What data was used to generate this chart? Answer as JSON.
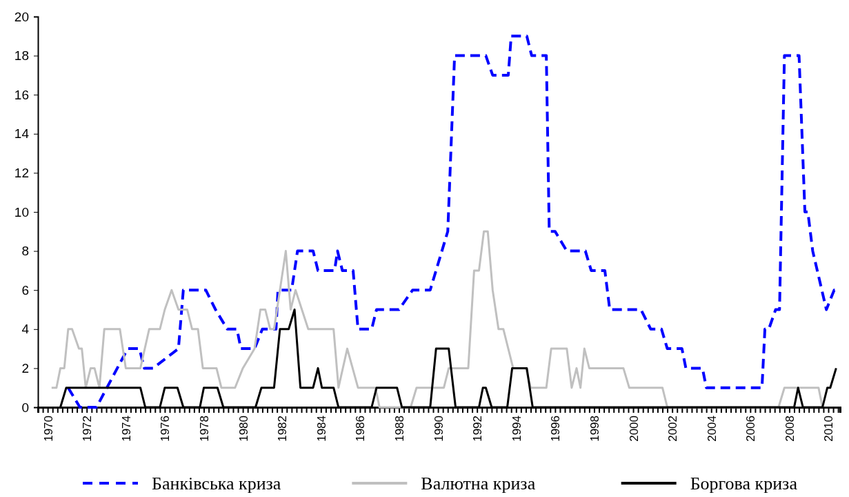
{
  "chart_data": {
    "type": "line",
    "xlim": [
      1969.5,
      2010.6
    ],
    "ylim": [
      0,
      20
    ],
    "yticks": [
      0,
      2,
      4,
      6,
      8,
      10,
      12,
      14,
      16,
      18,
      20
    ],
    "xticks": [
      {
        "value": 1969.5,
        "label": null
      },
      {
        "value": 1969.75,
        "label": null
      },
      1970,
      {
        "value": 1970.25,
        "label": null
      },
      {
        "value": 1970.5,
        "label": null
      },
      {
        "value": 1970.75,
        "label": null
      },
      {
        "value": 1971,
        "label": null
      },
      {
        "value": 1971.25,
        "label": null
      },
      {
        "value": 1971.5,
        "label": null
      },
      {
        "value": 1971.75,
        "label": null
      },
      1972,
      {
        "value": 1972.25,
        "label": null
      },
      {
        "value": 1972.5,
        "label": null
      },
      {
        "value": 1972.75,
        "label": null
      },
      {
        "value": 1973,
        "label": null
      },
      {
        "value": 1973.25,
        "label": null
      },
      {
        "value": 1973.5,
        "label": null
      },
      {
        "value": 1973.75,
        "label": null
      },
      1974,
      {
        "value": 1974.25,
        "label": null
      },
      {
        "value": 1974.5,
        "label": null
      },
      {
        "value": 1974.75,
        "label": null
      },
      {
        "value": 1975,
        "label": null
      },
      {
        "value": 1975.25,
        "label": null
      },
      {
        "value": 1975.5,
        "label": null
      },
      {
        "value": 1975.75,
        "label": null
      },
      1976,
      {
        "value": 1976.25,
        "label": null
      },
      {
        "value": 1976.5,
        "label": null
      },
      {
        "value": 1976.75,
        "label": null
      },
      {
        "value": 1977,
        "label": null
      },
      {
        "value": 1977.25,
        "label": null
      },
      {
        "value": 1977.5,
        "label": null
      },
      {
        "value": 1977.75,
        "label": null
      },
      1978,
      {
        "value": 1978.25,
        "label": null
      },
      {
        "value": 1978.5,
        "label": null
      },
      {
        "value": 1978.75,
        "label": null
      },
      {
        "value": 1979,
        "label": null
      },
      {
        "value": 1979.25,
        "label": null
      },
      {
        "value": 1979.5,
        "label": null
      },
      {
        "value": 1979.75,
        "label": null
      },
      1980,
      {
        "value": 1980.25,
        "label": null
      },
      {
        "value": 1980.5,
        "label": null
      },
      {
        "value": 1980.75,
        "label": null
      },
      {
        "value": 1981,
        "label": null
      },
      {
        "value": 1981.25,
        "label": null
      },
      {
        "value": 1981.5,
        "label": null
      },
      {
        "value": 1981.75,
        "label": null
      },
      1982,
      {
        "value": 1982.25,
        "label": null
      },
      {
        "value": 1982.5,
        "label": null
      },
      {
        "value": 1982.75,
        "label": null
      },
      {
        "value": 1983,
        "label": null
      },
      {
        "value": 1983.25,
        "label": null
      },
      {
        "value": 1983.5,
        "label": null
      },
      {
        "value": 1983.75,
        "label": null
      },
      1984,
      {
        "value": 1984.25,
        "label": null
      },
      {
        "value": 1984.5,
        "label": null
      },
      {
        "value": 1984.75,
        "label": null
      },
      {
        "value": 1985,
        "label": null
      },
      {
        "value": 1985.25,
        "label": null
      },
      {
        "value": 1985.5,
        "label": null
      },
      {
        "value": 1985.75,
        "label": null
      },
      1986,
      {
        "value": 1986.25,
        "label": null
      },
      {
        "value": 1986.5,
        "label": null
      },
      {
        "value": 1986.75,
        "label": null
      },
      {
        "value": 1987,
        "label": null
      },
      {
        "value": 1987.25,
        "label": null
      },
      {
        "value": 1987.5,
        "label": null
      },
      {
        "value": 1987.75,
        "label": null
      },
      1988,
      {
        "value": 1988.25,
        "label": null
      },
      {
        "value": 1988.5,
        "label": null
      },
      {
        "value": 1988.75,
        "label": null
      },
      {
        "value": 1989,
        "label": null
      },
      {
        "value": 1989.25,
        "label": null
      },
      {
        "value": 1989.5,
        "label": null
      },
      {
        "value": 1989.75,
        "label": null
      },
      1990,
      {
        "value": 1990.25,
        "label": null
      },
      {
        "value": 1990.5,
        "label": null
      },
      {
        "value": 1990.75,
        "label": null
      },
      {
        "value": 1991,
        "label": null
      },
      {
        "value": 1991.25,
        "label": null
      },
      {
        "value": 1991.5,
        "label": null
      },
      {
        "value": 1991.75,
        "label": null
      },
      1992,
      {
        "value": 1992.25,
        "label": null
      },
      {
        "value": 1992.5,
        "label": null
      },
      {
        "value": 1992.75,
        "label": null
      },
      {
        "value": 1993,
        "label": null
      },
      {
        "value": 1993.25,
        "label": null
      },
      {
        "value": 1993.5,
        "label": null
      },
      {
        "value": 1993.75,
        "label": null
      },
      1994,
      {
        "value": 1994.25,
        "label": null
      },
      {
        "value": 1994.5,
        "label": null
      },
      {
        "value": 1994.75,
        "label": null
      },
      {
        "value": 1995,
        "label": null
      },
      {
        "value": 1995.25,
        "label": null
      },
      {
        "value": 1995.5,
        "label": null
      },
      {
        "value": 1995.75,
        "label": null
      },
      1996,
      {
        "value": 1996.25,
        "label": null
      },
      {
        "value": 1996.5,
        "label": null
      },
      {
        "value": 1996.75,
        "label": null
      },
      {
        "value": 1997,
        "label": null
      },
      {
        "value": 1997.25,
        "label": null
      },
      {
        "value": 1997.5,
        "label": null
      },
      {
        "value": 1997.75,
        "label": null
      },
      1998,
      {
        "value": 1998.25,
        "label": null
      },
      {
        "value": 1998.5,
        "label": null
      },
      {
        "value": 1998.75,
        "label": null
      },
      {
        "value": 1999,
        "label": null
      },
      {
        "value": 1999.25,
        "label": null
      },
      {
        "value": 1999.5,
        "label": null
      },
      {
        "value": 1999.75,
        "label": null
      },
      2000,
      {
        "value": 2000.25,
        "label": null
      },
      {
        "value": 2000.5,
        "label": null
      },
      {
        "value": 2000.75,
        "label": null
      },
      {
        "value": 2001,
        "label": null
      },
      {
        "value": 2001.25,
        "label": null
      },
      {
        "value": 2001.5,
        "label": null
      },
      {
        "value": 2001.75,
        "label": null
      },
      2002,
      {
        "value": 2002.25,
        "label": null
      },
      {
        "value": 2002.5,
        "label": null
      },
      {
        "value": 2002.75,
        "label": null
      },
      {
        "value": 2003,
        "label": null
      },
      {
        "value": 2003.25,
        "label": null
      },
      {
        "value": 2003.5,
        "label": null
      },
      {
        "value": 2003.75,
        "label": null
      },
      2004,
      {
        "value": 2004.25,
        "label": null
      },
      {
        "value": 2004.5,
        "label": null
      },
      {
        "value": 2004.75,
        "label": null
      },
      {
        "value": 2005,
        "label": null
      },
      {
        "value": 2005.25,
        "label": null
      },
      {
        "value": 2005.5,
        "label": null
      },
      {
        "value": 2005.75,
        "label": null
      },
      2006,
      {
        "value": 2006.25,
        "label": null
      },
      {
        "value": 2006.5,
        "label": null
      },
      {
        "value": 2006.75,
        "label": null
      },
      {
        "value": 2007,
        "label": null
      },
      {
        "value": 2007.25,
        "label": null
      },
      {
        "value": 2007.5,
        "label": null
      },
      {
        "value": 2007.75,
        "label": null
      },
      2008,
      {
        "value": 2008.25,
        "label": null
      },
      {
        "value": 2008.5,
        "label": null
      },
      {
        "value": 2008.75,
        "label": null
      },
      {
        "value": 2009,
        "label": null
      },
      {
        "value": 2009.25,
        "label": null
      },
      {
        "value": 2009.5,
        "label": null
      },
      {
        "value": 2009.75,
        "label": null
      },
      2010,
      {
        "value": 2010.25,
        "label": null
      },
      {
        "value": 2010.5,
        "label": null
      }
    ],
    "legend": "bottom",
    "series": [
      {
        "name": "Банківська криза",
        "color": "#0000ff",
        "line_style": "dashed",
        "x": [
          1971.05,
          1971.65,
          1972.5,
          1974.1,
          1974.7,
          1974.95,
          1975.4,
          1976.7,
          1976.95,
          1978.1,
          1978.6,
          1979.2,
          1979.7,
          1979.9,
          1980.6,
          1981.0,
          1981.7,
          1981.8,
          1982.5,
          1982.8,
          1983.6,
          1983.85,
          1984.7,
          1984.85,
          1985.1,
          1985.65,
          1985.9,
          1986.6,
          1986.85,
          1988.0,
          1988.7,
          1989.6,
          1990.5,
          1990.85,
          1992.45,
          1992.8,
          1993.6,
          1993.75,
          1994.55,
          1994.8,
          1995.55,
          1995.7,
          1996.0,
          1996.6,
          1997.55,
          1997.85,
          1998.55,
          1998.8,
          2000.4,
          2000.9,
          2001.45,
          2001.75,
          2002.5,
          2002.7,
          2003.55,
          2003.75,
          2006.6,
          2006.75,
          2006.95,
          2007.3,
          2007.5,
          2007.75,
          2008.5,
          2008.8,
          2008.95,
          2009.2,
          2009.9,
          2010.3,
          2010.45
        ],
        "values": [
          1,
          0,
          0,
          3,
          3,
          2,
          2,
          3,
          6,
          6,
          5,
          4,
          4,
          3,
          3,
          4,
          4,
          6,
          6,
          8,
          8,
          7,
          7,
          8,
          7,
          7,
          4,
          4,
          5,
          5,
          6,
          6,
          9,
          18,
          18,
          17,
          17,
          19,
          19,
          18,
          18,
          9,
          9,
          8,
          8,
          7,
          7,
          5,
          5,
          4,
          4,
          3,
          3,
          2,
          2,
          1,
          1,
          4,
          4,
          5,
          5,
          18,
          18,
          10,
          10,
          8,
          5,
          6,
          6
        ]
      },
      {
        "name": "Валютна криза",
        "color": "#c0c0c0",
        "line_style": "solid",
        "x": [
          1970.2,
          1970.45,
          1970.65,
          1970.85,
          1971.05,
          1971.25,
          1971.6,
          1971.75,
          1971.95,
          1972.2,
          1972.4,
          1972.65,
          1972.9,
          1973.7,
          1974.0,
          1974.75,
          1975.2,
          1975.75,
          1976.0,
          1976.35,
          1976.7,
          1977.15,
          1977.4,
          1977.7,
          1977.95,
          1978.65,
          1978.9,
          1979.6,
          1980.0,
          1980.6,
          1980.9,
          1981.15,
          1981.4,
          1981.6,
          1982.2,
          1982.45,
          1982.7,
          1983.35,
          1984.65,
          1984.9,
          1985.35,
          1985.9,
          1986.8,
          1987.0,
          1988.6,
          1988.9,
          1990.3,
          1990.55,
          1991.55,
          1991.85,
          1992.1,
          1992.35,
          1992.55,
          1992.8,
          1993.1,
          1993.35,
          1993.85,
          1994.5,
          1994.75,
          1995.55,
          1995.8,
          1996.6,
          1996.85,
          1997.1,
          1997.3,
          1997.5,
          1997.75,
          1999.5,
          1999.8,
          2001.5,
          2001.75,
          2007.45,
          2007.75,
          2009.5,
          2009.7
        ],
        "values": [
          1,
          1,
          2,
          2,
          4,
          4,
          3,
          3,
          1,
          2,
          2,
          1,
          4,
          4,
          2,
          2,
          4,
          4,
          5,
          6,
          5,
          5,
          4,
          4,
          2,
          2,
          1,
          1,
          2,
          3,
          5,
          5,
          4,
          4,
          8,
          5,
          6,
          4,
          4,
          1,
          3,
          1,
          1,
          0,
          0,
          1,
          1,
          2,
          2,
          7,
          7,
          9,
          9,
          6,
          4,
          4,
          2,
          2,
          1,
          1,
          3,
          3,
          1,
          2,
          1,
          3,
          2,
          2,
          1,
          1,
          0,
          0,
          1,
          1,
          0
        ]
      },
      {
        "name": "Боргова криза",
        "color": "#000000",
        "line_style": "solid",
        "x": [
          1970.65,
          1970.95,
          1974.75,
          1975.0,
          1975.75,
          1976.0,
          1976.65,
          1976.95,
          1977.8,
          1978.0,
          1978.7,
          1979.0,
          1980.65,
          1980.95,
          1981.6,
          1981.9,
          1982.35,
          1982.65,
          1982.95,
          1983.6,
          1983.85,
          1984.05,
          1984.65,
          1984.9,
          1986.6,
          1986.85,
          1987.9,
          1988.15,
          1989.6,
          1989.9,
          1990.55,
          1990.9,
          1992.1,
          1992.3,
          1992.45,
          1992.75,
          1993.55,
          1993.8,
          1994.55,
          1994.85,
          2008.25,
          2008.45,
          2008.7,
          2009.7,
          2009.95,
          2010.1,
          2010.4
        ],
        "values": [
          0,
          1,
          1,
          0,
          0,
          1,
          1,
          0,
          0,
          1,
          1,
          0,
          0,
          1,
          1,
          4,
          4,
          5,
          1,
          1,
          2,
          1,
          1,
          0,
          0,
          1,
          1,
          0,
          0,
          3,
          3,
          0,
          0,
          1,
          1,
          0,
          0,
          2,
          2,
          0,
          0,
          1,
          0,
          0,
          1,
          1,
          2
        ]
      }
    ]
  }
}
